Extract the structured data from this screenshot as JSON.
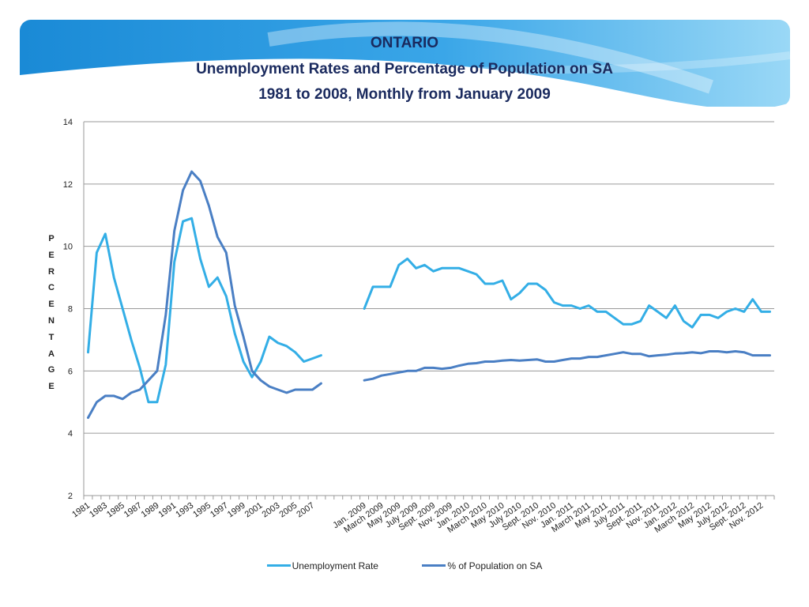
{
  "colors": {
    "unemployment": "#33aee6",
    "sa": "#4a7fc4",
    "grid": "#9a9a9a",
    "title": "#1a2a5e",
    "banner_dark": "#1890d8",
    "banner_light": "#8fd4f6"
  },
  "chart_data": {
    "type": "line",
    "title": [
      "ONTARIO",
      "Unemployment Rates and Percentage of Population on SA",
      "1981 to 2008, Monthly from January 2009"
    ],
    "ylabel": "PERCENTAGE",
    "ylim": [
      2,
      14
    ],
    "yticks": [
      2,
      4,
      6,
      8,
      10,
      12,
      14
    ],
    "grid": true,
    "legend_position": "bottom",
    "x": [
      "1981",
      "1982",
      "1983",
      "1984",
      "1985",
      "1986",
      "1987",
      "1988",
      "1989",
      "1990",
      "1991",
      "1992",
      "1993",
      "1994",
      "1995",
      "1996",
      "1997",
      "1998",
      "1999",
      "2000",
      "2001",
      "2002",
      "2003",
      "2004",
      "2005",
      "2006",
      "2007",
      "2008",
      "",
      "",
      "",
      "",
      "Jan. 2009",
      "Feb. 2009",
      "March 2009",
      "Apr. 2009",
      "May 2009",
      "June 2009",
      "July 2009",
      "Aug. 2009",
      "Sept. 2009",
      "Oct. 2009",
      "Nov. 2009",
      "Dec. 2009",
      "Jan. 2010",
      "Feb. 2010",
      "March 2010",
      "Apr. 2010",
      "May 2010",
      "June 2010",
      "July 2010",
      "Aug. 2010",
      "Sept. 2010",
      "Oct. 2010",
      "Nov. 2010",
      "Dec. 2010",
      "Jan. 2011",
      "Feb. 2011",
      "March 2011",
      "Apr. 2011",
      "May 2011",
      "June 2011",
      "July 2011",
      "Aug. 2011",
      "Sept. 2011",
      "Oct. 2011",
      "Nov. 2011",
      "Dec. 2011",
      "Jan. 2012",
      "Feb. 2012",
      "March 2012",
      "Apr. 2012",
      "May 2012",
      "June 2012",
      "July 2012",
      "Aug. 2012",
      "Sept. 2012",
      "Oct. 2012",
      "Nov. 2012",
      "Dec. 2012"
    ],
    "tick_labels": [
      "1981",
      "1983",
      "1985",
      "1987",
      "1989",
      "1991",
      "1993",
      "1995",
      "1997",
      "1999",
      "2001",
      "2003",
      "2005",
      "2007",
      "Jan. 2009",
      "March 2009",
      "May 2009",
      "July 2009",
      "Sept. 2009",
      "Nov. 2009",
      "Jan. 2010",
      "March 2010",
      "May 2010",
      "July 2010",
      "Sept. 2010",
      "Nov. 2010",
      "Jan. 2011",
      "March 2011",
      "May 2011",
      "July 2011",
      "Sept. 2011",
      "Nov. 2011",
      "Jan. 2012",
      "March 2012",
      "May 2012",
      "July 2012",
      "Sept. 2012",
      "Nov. 2012"
    ],
    "series": [
      {
        "name": "Unemployment Rate",
        "values": [
          6.6,
          9.8,
          10.4,
          9.0,
          8.0,
          7.0,
          6.1,
          5.0,
          5.0,
          6.2,
          9.5,
          10.8,
          10.9,
          9.6,
          8.7,
          9.0,
          8.4,
          7.2,
          6.3,
          5.8,
          6.3,
          7.1,
          6.9,
          6.8,
          6.6,
          6.3,
          6.4,
          6.5,
          null,
          null,
          null,
          null,
          8.0,
          8.7,
          8.7,
          8.7,
          9.4,
          9.6,
          9.3,
          9.4,
          9.2,
          9.3,
          9.3,
          9.3,
          9.2,
          9.1,
          8.8,
          8.8,
          8.9,
          8.3,
          8.5,
          8.8,
          8.8,
          8.6,
          8.2,
          8.1,
          8.1,
          8.0,
          8.1,
          7.9,
          7.9,
          7.7,
          7.5,
          7.5,
          7.6,
          8.1,
          7.9,
          7.7,
          8.1,
          7.6,
          7.4,
          7.8,
          7.8,
          7.7,
          7.9,
          8.0,
          7.9,
          8.3,
          7.9,
          7.9
        ]
      },
      {
        "name": "% of Population on SA",
        "values": [
          4.5,
          5.0,
          5.2,
          5.2,
          5.1,
          5.3,
          5.4,
          5.7,
          6.0,
          7.8,
          10.5,
          11.8,
          12.4,
          12.1,
          11.3,
          10.3,
          9.8,
          8.1,
          7.1,
          6.0,
          5.7,
          5.5,
          5.4,
          5.3,
          5.4,
          5.4,
          5.4,
          5.6,
          null,
          null,
          null,
          null,
          5.7,
          5.75,
          5.85,
          5.9,
          5.95,
          6.0,
          6.0,
          6.1,
          6.1,
          6.07,
          6.1,
          6.17,
          6.23,
          6.25,
          6.3,
          6.3,
          6.33,
          6.35,
          6.33,
          6.35,
          6.37,
          6.3,
          6.3,
          6.35,
          6.4,
          6.4,
          6.45,
          6.45,
          6.5,
          6.55,
          6.6,
          6.55,
          6.55,
          6.47,
          6.5,
          6.52,
          6.56,
          6.57,
          6.6,
          6.57,
          6.63,
          6.63,
          6.6,
          6.63,
          6.6,
          6.5,
          6.5,
          6.5
        ]
      }
    ]
  }
}
